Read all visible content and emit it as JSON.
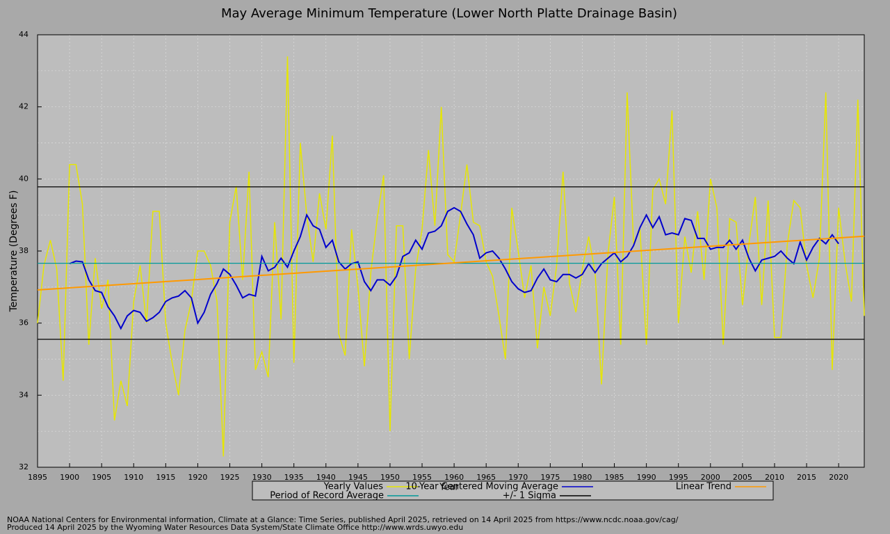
{
  "chart_data": {
    "type": "line",
    "title": "May Average Minimum Temperature (Lower North Platte Drainage Basin)",
    "x_label": "Year",
    "y_label": "Temperature (Degrees F)",
    "x": [
      1895,
      1896,
      1897,
      1898,
      1899,
      1900,
      1901,
      1902,
      1903,
      1904,
      1905,
      1906,
      1907,
      1908,
      1909,
      1910,
      1911,
      1912,
      1913,
      1914,
      1915,
      1916,
      1917,
      1918,
      1919,
      1920,
      1921,
      1922,
      1923,
      1924,
      1925,
      1926,
      1927,
      1928,
      1929,
      1930,
      1931,
      1932,
      1933,
      1934,
      1935,
      1936,
      1937,
      1938,
      1939,
      1940,
      1941,
      1942,
      1943,
      1944,
      1945,
      1946,
      1947,
      1948,
      1949,
      1950,
      1951,
      1952,
      1953,
      1954,
      1955,
      1956,
      1957,
      1958,
      1959,
      1960,
      1961,
      1962,
      1963,
      1964,
      1965,
      1966,
      1967,
      1968,
      1969,
      1970,
      1971,
      1972,
      1973,
      1974,
      1975,
      1976,
      1977,
      1978,
      1979,
      1980,
      1981,
      1982,
      1983,
      1984,
      1985,
      1986,
      1987,
      1988,
      1989,
      1990,
      1991,
      1992,
      1993,
      1994,
      1995,
      1996,
      1997,
      1998,
      1999,
      2000,
      2001,
      2002,
      2003,
      2004,
      2005,
      2006,
      2007,
      2008,
      2009,
      2010,
      2011,
      2012,
      2013,
      2014,
      2015,
      2016,
      2017,
      2018,
      2019,
      2020,
      2021,
      2022,
      2023,
      2024
    ],
    "series": [
      {
        "name": "Yearly Values",
        "color": "#e6e600",
        "values": [
          36.0,
          37.6,
          38.3,
          37.5,
          34.4,
          40.4,
          40.4,
          39.3,
          35.4,
          37.8,
          36.4,
          37.2,
          33.3,
          34.4,
          33.7,
          36.6,
          37.6,
          36.0,
          39.1,
          39.1,
          36.0,
          34.9,
          34.0,
          35.8,
          36.6,
          38.0,
          38.0,
          37.6,
          36.6,
          32.3,
          38.8,
          39.8,
          37.2,
          40.2,
          34.7,
          35.2,
          34.5,
          38.8,
          36.1,
          43.4,
          34.9,
          41.0,
          39.0,
          37.7,
          39.6,
          38.6,
          41.2,
          35.7,
          35.1,
          38.6,
          37.0,
          34.8,
          37.4,
          38.9,
          40.1,
          33.0,
          38.7,
          38.7,
          35.0,
          37.5,
          38.6,
          40.8,
          38.7,
          42.0,
          37.9,
          37.7,
          39.0,
          40.4,
          38.8,
          38.7,
          37.7,
          37.3,
          36.2,
          35.0,
          39.2,
          38.0,
          36.7,
          37.6,
          35.3,
          37.0,
          36.2,
          37.6,
          40.2,
          37.1,
          36.3,
          37.5,
          38.4,
          37.4,
          34.3,
          37.9,
          39.5,
          35.4,
          42.4,
          38.2,
          38.6,
          35.4,
          39.7,
          40.0,
          39.3,
          41.9,
          36.0,
          38.4,
          37.4,
          39.1,
          37.2,
          40.0,
          39.2,
          35.4,
          38.9,
          38.8,
          36.5,
          38.2,
          39.5,
          36.5,
          39.4,
          35.6,
          35.6,
          38.2,
          39.4,
          39.2,
          37.6,
          36.7,
          37.8,
          42.4,
          34.7,
          39.2,
          37.7,
          36.6,
          42.2,
          36.2
        ]
      },
      {
        "name": "10-Year Centered Moving Average",
        "color": "#0000cc",
        "values": [
          null,
          null,
          null,
          null,
          null,
          37.65,
          37.72,
          37.7,
          37.2,
          36.9,
          36.85,
          36.45,
          36.2,
          35.85,
          36.2,
          36.35,
          36.3,
          36.05,
          36.15,
          36.3,
          36.6,
          36.7,
          36.75,
          36.9,
          36.7,
          36.0,
          36.3,
          36.8,
          37.1,
          37.5,
          37.35,
          37.05,
          36.7,
          36.8,
          36.75,
          37.85,
          37.45,
          37.55,
          37.8,
          37.55,
          38.0,
          38.4,
          39.0,
          38.7,
          38.6,
          38.1,
          38.3,
          37.7,
          37.5,
          37.65,
          37.7,
          37.15,
          36.9,
          37.2,
          37.2,
          37.05,
          37.3,
          37.85,
          37.95,
          38.3,
          38.05,
          38.5,
          38.55,
          38.7,
          39.1,
          39.2,
          39.1,
          38.75,
          38.45,
          37.8,
          37.95,
          38.0,
          37.8,
          37.5,
          37.15,
          36.95,
          36.85,
          36.9,
          37.25,
          37.5,
          37.2,
          37.15,
          37.35,
          37.35,
          37.25,
          37.35,
          37.65,
          37.4,
          37.65,
          37.8,
          37.95,
          37.7,
          37.85,
          38.15,
          38.65,
          39.0,
          38.65,
          38.95,
          38.45,
          38.5,
          38.45,
          38.9,
          38.85,
          38.35,
          38.35,
          38.05,
          38.1,
          38.1,
          38.3,
          38.05,
          38.3,
          37.8,
          37.45,
          37.75,
          37.8,
          37.85,
          38.0,
          37.8,
          37.65,
          38.25,
          37.75,
          38.1,
          38.35,
          38.2,
          38.45,
          38.2,
          null,
          null,
          null,
          null
        ]
      }
    ],
    "trend": {
      "name": "Linear Trend",
      "color": "#ff9900",
      "x": [
        1895,
        2024
      ],
      "values": [
        36.92,
        38.41
      ]
    },
    "reference_lines": [
      {
        "name": "Period of Record Average",
        "color": "#009999",
        "values": [
          37.66
        ]
      },
      {
        "name": "+/- 1 Sigma",
        "color": "#000000",
        "values": [
          39.78,
          35.55
        ]
      }
    ],
    "xlim": [
      1895,
      2024
    ],
    "ylim": [
      32,
      44
    ],
    "xticks": [
      1895,
      1900,
      1905,
      1910,
      1915,
      1920,
      1925,
      1930,
      1935,
      1940,
      1945,
      1950,
      1955,
      1960,
      1965,
      1970,
      1975,
      1980,
      1985,
      1990,
      1995,
      2000,
      2005,
      2010,
      2015,
      2020
    ],
    "yticks": [
      32,
      34,
      36,
      38,
      40,
      42,
      44
    ],
    "y_minor_ticks": [
      33,
      35,
      37,
      39,
      41,
      43
    ],
    "grid": true,
    "footer": [
      "NOAA National Centers for Environmental information, Climate at a Glance: Time Series, published April 2025, retrieved on 14 April 2025 from https://www.ncdc.noaa.gov/cag/",
      "Produced 14 April 2025 by the Wyoming Water Resources Data System/State Climate Office http://www.wrds.uwyo.edu"
    ]
  }
}
